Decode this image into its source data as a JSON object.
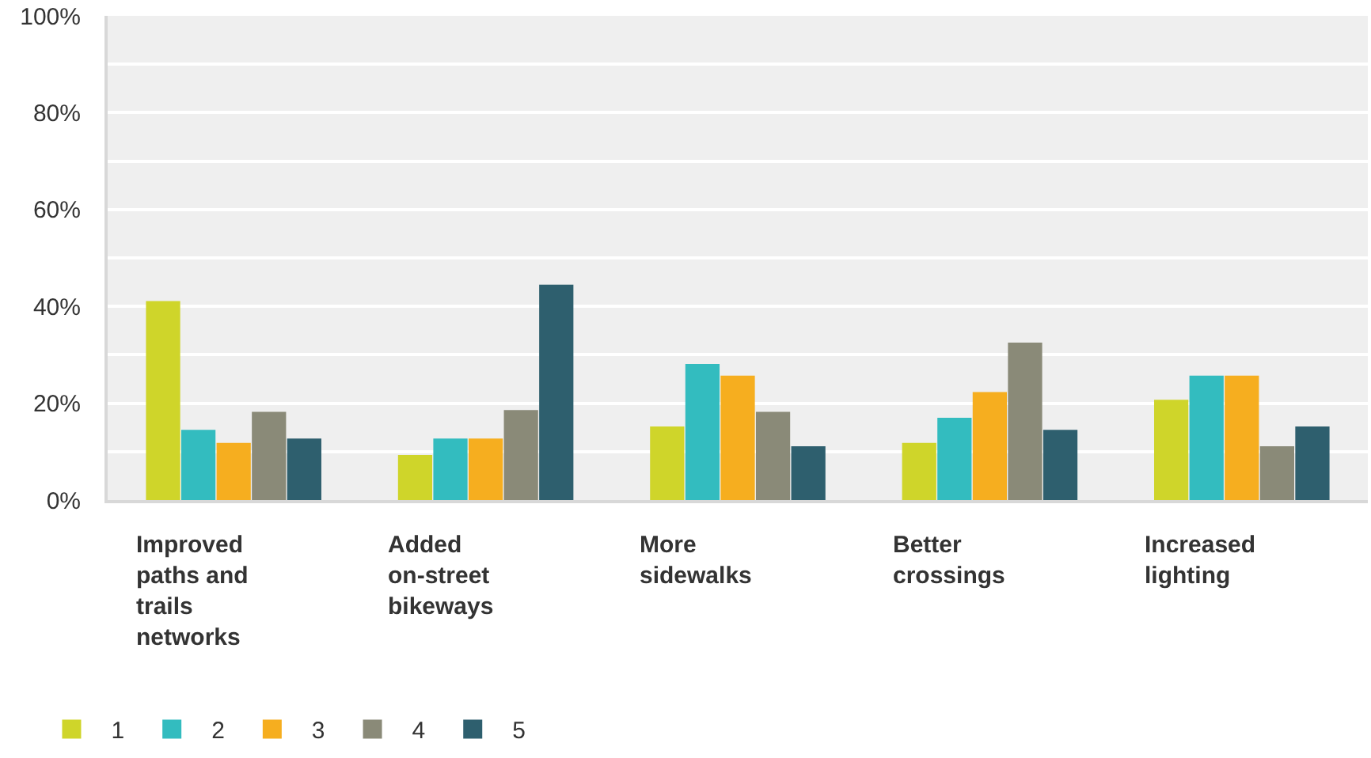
{
  "chart_data": {
    "type": "bar",
    "categories": [
      "Improved paths and trails networks",
      "Added on-street bikeways",
      "More sidewalks",
      "Better crossings",
      "Increased lighting"
    ],
    "series": [
      {
        "name": "1",
        "color": "#cfd52a",
        "values": [
          41.1,
          9.3,
          15.2,
          11.8,
          20.7
        ]
      },
      {
        "name": "2",
        "color": "#33bcbf",
        "values": [
          14.5,
          12.7,
          28.1,
          17.0,
          25.7
        ]
      },
      {
        "name": "3",
        "color": "#f6ae1f",
        "values": [
          11.8,
          12.7,
          25.7,
          22.3,
          25.7
        ]
      },
      {
        "name": "4",
        "color": "#8a8a78",
        "values": [
          18.2,
          18.6,
          18.2,
          32.5,
          11.1
        ]
      },
      {
        "name": "5",
        "color": "#2e5f6e",
        "values": [
          12.7,
          44.5,
          11.1,
          14.5,
          15.2
        ]
      }
    ],
    "ylim": [
      0,
      100
    ],
    "yticks": [
      {
        "value": 0,
        "label": "0%"
      },
      {
        "value": 10,
        "label": null
      },
      {
        "value": 20,
        "label": "20%"
      },
      {
        "value": 30,
        "label": null
      },
      {
        "value": 40,
        "label": "40%"
      },
      {
        "value": 50,
        "label": null
      },
      {
        "value": 60,
        "label": "60%"
      },
      {
        "value": 70,
        "label": null
      },
      {
        "value": 80,
        "label": "80%"
      },
      {
        "value": 90,
        "label": null
      },
      {
        "value": 100,
        "label": "100%"
      }
    ],
    "grid": "y",
    "legend": "bottom left"
  }
}
